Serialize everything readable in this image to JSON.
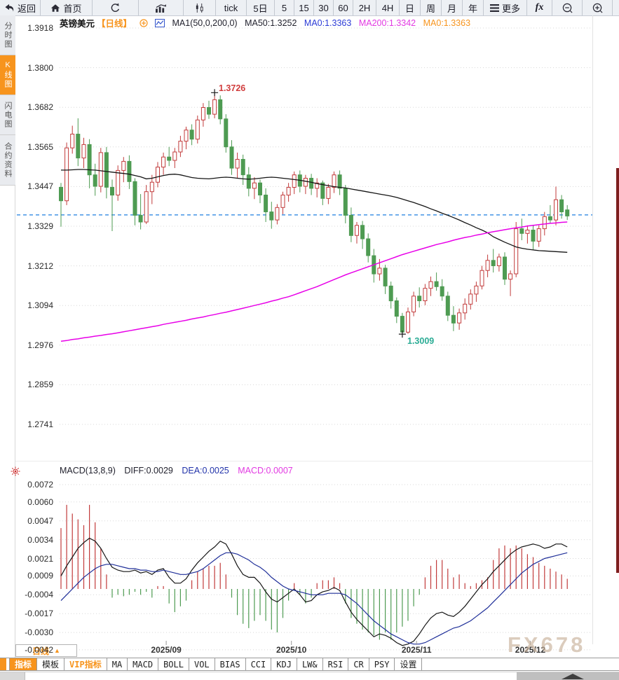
{
  "toolbar": {
    "back": "返回",
    "home": "首页",
    "tick": "tick",
    "d5": "5日",
    "m5": "5",
    "m15": "15",
    "m30": "30",
    "m60": "60",
    "h2": "2H",
    "h4": "4H",
    "day": "日",
    "week": "周",
    "month": "月",
    "year": "年",
    "more": "更多",
    "fx": "fx"
  },
  "sidebar": {
    "items": [
      {
        "label": "分时图",
        "active": false
      },
      {
        "label": "K线图",
        "active": true
      },
      {
        "label": "闪电图",
        "active": false
      },
      {
        "label": "合约资料",
        "active": false
      }
    ]
  },
  "price_panel": {
    "symbol": "英镑美元",
    "period": "【日线】",
    "ma_settings": "MA1(50,0,200,0)",
    "ma50": "MA50:1.3252",
    "ma0_blue": "MA0:1.3363",
    "ma200": "MA200:1.3342",
    "ma0_orange": "MA0:1.3363",
    "high_label": "1.3726",
    "low_label": "1.3009",
    "axis_labels": [
      "1.3918",
      "1.3800",
      "1.3682",
      "1.3565",
      "1.3447",
      "1.3329",
      "1.3212",
      "1.3094",
      "1.2976",
      "1.2859",
      "1.2741"
    ]
  },
  "macd_panel": {
    "title": "MACD(13,8,9)",
    "diff": "DIFF:0.0029",
    "dea": "DEA:0.0025",
    "macd": "MACD:0.0007",
    "axis_labels": [
      "0.0072",
      "0.0060",
      "0.0047",
      "0.0034",
      "0.0021",
      "0.0009",
      "-0.0004",
      "-0.0017",
      "-0.0030",
      "-0.0042"
    ]
  },
  "footer": {
    "period_selector": "日线",
    "watermark": "FX678",
    "tabs": [
      {
        "label": "指标",
        "active": true
      },
      {
        "label": "模板"
      },
      {
        "label": "VIP指标",
        "vip": true
      },
      {
        "label": "MA"
      },
      {
        "label": "MACD"
      },
      {
        "label": "BOLL"
      },
      {
        "label": "VOL"
      },
      {
        "label": "BIAS"
      },
      {
        "label": "CCI"
      },
      {
        "label": "KDJ"
      },
      {
        "label": "LW&"
      },
      {
        "label": "RSI"
      },
      {
        "label": "CR"
      },
      {
        "label": "PSY"
      },
      {
        "label": "设置"
      }
    ]
  },
  "colors": {
    "accent_orange": "#f7941d",
    "up_red": "#c23b3b",
    "down_green": "#4e9b52",
    "ma50_black": "#151515",
    "ma200_magenta": "#e800e8",
    "dea_blue": "#1f2f99",
    "diff_black": "#151515",
    "current_price_blue": "#1e7fe0",
    "grid_gray": "#d8d8d8",
    "high_red": "#d03c3c",
    "low_teal": "#2aab94"
  },
  "chart_data": {
    "type": "candlestick",
    "symbol": "GBP/USD 英镑美元",
    "interval": "日线 (daily)",
    "current_price": 1.3363,
    "high_marker": {
      "index": 27,
      "price": 1.3726
    },
    "low_marker": {
      "index": 60,
      "price": 1.3009
    },
    "months": [
      {
        "label": "2025/09",
        "index": 18.5
      },
      {
        "label": "2025/10",
        "index": 40.5
      },
      {
        "label": "2025/11",
        "index": 62.5
      },
      {
        "label": "2025/12",
        "index": 82.5
      }
    ],
    "price_axis_range": [
      1.2741,
      1.3918
    ],
    "macd_axis_range": [
      -0.0042,
      0.0072
    ],
    "candles": [
      [
        1.3445,
        1.3458,
        1.3328,
        1.3405
      ],
      [
        1.3405,
        1.3578,
        1.3392,
        1.3562
      ],
      [
        1.3562,
        1.3628,
        1.3545,
        1.3603
      ],
      [
        1.3603,
        1.365,
        1.3508,
        1.3532
      ],
      [
        1.3532,
        1.3592,
        1.3502,
        1.3572
      ],
      [
        1.3572,
        1.3588,
        1.3442,
        1.3482
      ],
      [
        1.3482,
        1.3515,
        1.342,
        1.3448
      ],
      [
        1.3448,
        1.3562,
        1.343,
        1.3548
      ],
      [
        1.3548,
        1.3565,
        1.3412,
        1.3445
      ],
      [
        1.3445,
        1.3468,
        1.3315,
        1.3422
      ],
      [
        1.3422,
        1.351,
        1.3405,
        1.3495
      ],
      [
        1.3495,
        1.3535,
        1.346,
        1.3522
      ],
      [
        1.3522,
        1.354,
        1.344,
        1.3462
      ],
      [
        1.3462,
        1.3472,
        1.3332,
        1.3362
      ],
      [
        1.3362,
        1.3425,
        1.332,
        1.3342
      ],
      [
        1.3342,
        1.3452,
        1.3336,
        1.3432
      ],
      [
        1.3432,
        1.3482,
        1.3395,
        1.346
      ],
      [
        1.346,
        1.352,
        1.3445,
        1.3505
      ],
      [
        1.3505,
        1.3548,
        1.3482,
        1.3535
      ],
      [
        1.3535,
        1.3565,
        1.3508,
        1.3525
      ],
      [
        1.3525,
        1.3562,
        1.3502,
        1.355
      ],
      [
        1.355,
        1.3598,
        1.3535,
        1.3582
      ],
      [
        1.3582,
        1.3625,
        1.3558,
        1.3615
      ],
      [
        1.3615,
        1.3632,
        1.357,
        1.3588
      ],
      [
        1.3588,
        1.3658,
        1.3575,
        1.3645
      ],
      [
        1.3645,
        1.3695,
        1.3625,
        1.3682
      ],
      [
        1.3682,
        1.3702,
        1.3648,
        1.3662
      ],
      [
        1.3662,
        1.3726,
        1.365,
        1.3705
      ],
      [
        1.3705,
        1.3718,
        1.3632,
        1.3648
      ],
      [
        1.3648,
        1.3662,
        1.3548,
        1.3565
      ],
      [
        1.3565,
        1.3585,
        1.3482,
        1.3502
      ],
      [
        1.3502,
        1.3548,
        1.3472,
        1.3528
      ],
      [
        1.3528,
        1.3542,
        1.3452,
        1.3482
      ],
      [
        1.3482,
        1.3505,
        1.3418,
        1.3442
      ],
      [
        1.3442,
        1.3475,
        1.341,
        1.3458
      ],
      [
        1.3458,
        1.3468,
        1.3398,
        1.3422
      ],
      [
        1.3422,
        1.3442,
        1.3342,
        1.3372
      ],
      [
        1.3372,
        1.3402,
        1.3322,
        1.3348
      ],
      [
        1.3348,
        1.3395,
        1.3335,
        1.3385
      ],
      [
        1.3385,
        1.3432,
        1.3365,
        1.3422
      ],
      [
        1.3422,
        1.3458,
        1.3402,
        1.3445
      ],
      [
        1.3445,
        1.3492,
        1.3425,
        1.3482
      ],
      [
        1.3482,
        1.3495,
        1.343,
        1.3448
      ],
      [
        1.3448,
        1.3482,
        1.3425,
        1.3472
      ],
      [
        1.3472,
        1.3485,
        1.3422,
        1.3442
      ],
      [
        1.3442,
        1.3472,
        1.3415,
        1.3458
      ],
      [
        1.3458,
        1.3465,
        1.3392,
        1.3412
      ],
      [
        1.3412,
        1.3455,
        1.3395,
        1.3445
      ],
      [
        1.3445,
        1.3492,
        1.3428,
        1.3482
      ],
      [
        1.3482,
        1.3495,
        1.3422,
        1.3442
      ],
      [
        1.3442,
        1.3452,
        1.3338,
        1.3362
      ],
      [
        1.3362,
        1.3385,
        1.3282,
        1.3302
      ],
      [
        1.3302,
        1.3342,
        1.3278,
        1.3332
      ],
      [
        1.3332,
        1.3345,
        1.3262,
        1.3292
      ],
      [
        1.3292,
        1.3308,
        1.3222,
        1.3242
      ],
      [
        1.3242,
        1.3262,
        1.3162,
        1.3188
      ],
      [
        1.3188,
        1.3232,
        1.3168,
        1.3205
      ],
      [
        1.3205,
        1.3215,
        1.3128,
        1.3152
      ],
      [
        1.3152,
        1.3165,
        1.3085,
        1.3108
      ],
      [
        1.3108,
        1.3118,
        1.3042,
        1.3062
      ],
      [
        1.3062,
        1.3072,
        1.3009,
        1.3015
      ],
      [
        1.3015,
        1.3088,
        1.301,
        1.3075
      ],
      [
        1.3075,
        1.3135,
        1.3062,
        1.3122
      ],
      [
        1.3122,
        1.3148,
        1.3088,
        1.3108
      ],
      [
        1.3108,
        1.3158,
        1.3095,
        1.3145
      ],
      [
        1.3145,
        1.318,
        1.3122,
        1.3165
      ],
      [
        1.3165,
        1.3192,
        1.3138,
        1.315
      ],
      [
        1.315,
        1.3172,
        1.3108,
        1.3122
      ],
      [
        1.3122,
        1.3135,
        1.3048,
        1.3065
      ],
      [
        1.3065,
        1.3092,
        1.3018,
        1.3042
      ],
      [
        1.3042,
        1.3085,
        1.3022,
        1.3072
      ],
      [
        1.3072,
        1.3115,
        1.3052,
        1.3098
      ],
      [
        1.3098,
        1.3142,
        1.3082,
        1.3128
      ],
      [
        1.3128,
        1.3165,
        1.3105,
        1.3152
      ],
      [
        1.3152,
        1.3212,
        1.3142,
        1.3198
      ],
      [
        1.3198,
        1.3245,
        1.3178,
        1.3228
      ],
      [
        1.3228,
        1.3262,
        1.3192,
        1.3212
      ],
      [
        1.3212,
        1.3248,
        1.3195,
        1.3238
      ],
      [
        1.3238,
        1.3252,
        1.3155,
        1.3172
      ],
      [
        1.3172,
        1.3198,
        1.3122,
        1.3188
      ],
      [
        1.3188,
        1.3342,
        1.3178,
        1.3322
      ],
      [
        1.3322,
        1.3352,
        1.3288,
        1.3308
      ],
      [
        1.3308,
        1.3332,
        1.3278,
        1.3318
      ],
      [
        1.3318,
        1.3332,
        1.3258,
        1.3285
      ],
      [
        1.3285,
        1.3332,
        1.3268,
        1.3322
      ],
      [
        1.3322,
        1.3372,
        1.3302,
        1.3358
      ],
      [
        1.3358,
        1.3392,
        1.3338,
        1.3348
      ],
      [
        1.3348,
        1.3447,
        1.3332,
        1.3408
      ],
      [
        1.3408,
        1.3422,
        1.3352,
        1.3372
      ],
      [
        1.3378,
        1.3392,
        1.3348,
        1.336
      ]
    ],
    "ma50": [
      1.3496,
      1.3496,
      1.3497,
      1.3498,
      1.3498,
      1.3497,
      1.3496,
      1.3494,
      1.3492,
      1.349,
      1.3488,
      1.3486,
      1.3484,
      1.348,
      1.3476,
      1.347,
      1.3472,
      1.3476,
      1.348,
      1.3483,
      1.3484,
      1.3482,
      1.3478,
      1.3474,
      1.3472,
      1.3471,
      1.347,
      1.3472,
      1.3474,
      1.3475,
      1.3474,
      1.3472,
      1.347,
      1.3469,
      1.347,
      1.3472,
      1.3474,
      1.3475,
      1.3474,
      1.3472,
      1.347,
      1.3468,
      1.3466,
      1.3463,
      1.346,
      1.3456,
      1.3453,
      1.345,
      1.3447,
      1.3445,
      1.3443,
      1.344,
      1.3437,
      1.3434,
      1.3431,
      1.3428,
      1.3425,
      1.3422,
      1.3419,
      1.3415,
      1.341,
      1.3405,
      1.34,
      1.3394,
      1.3388,
      1.3381,
      1.3375,
      1.3368,
      1.3362,
      1.3355,
      1.3348,
      1.334,
      1.3333,
      1.3325,
      1.3318,
      1.331,
      1.3298,
      1.329,
      1.3282,
      1.3275,
      1.3268,
      1.3264,
      1.3261,
      1.3259,
      1.3257,
      1.3256,
      1.3255,
      1.3254,
      1.3253,
      1.3252
    ],
    "ma200": [
      1.2988,
      1.299,
      1.2993,
      1.2995,
      1.2998,
      1.3,
      1.3003,
      1.3005,
      1.3008,
      1.301,
      1.3013,
      1.3016,
      1.3019,
      1.3022,
      1.3025,
      1.3028,
      1.3031,
      1.3034,
      1.3038,
      1.3041,
      1.3044,
      1.3047,
      1.305,
      1.3054,
      1.3057,
      1.306,
      1.3064,
      1.3067,
      1.3071,
      1.3074,
      1.3078,
      1.3082,
      1.3086,
      1.309,
      1.3094,
      1.3098,
      1.3102,
      1.3107,
      1.3111,
      1.3116,
      1.312,
      1.3126,
      1.3132,
      1.3138,
      1.3144,
      1.315,
      1.3157,
      1.3164,
      1.3171,
      1.3178,
      1.3185,
      1.3191,
      1.3197,
      1.3203,
      1.3209,
      1.3215,
      1.3221,
      1.3227,
      1.3233,
      1.3239,
      1.3245,
      1.325,
      1.3255,
      1.326,
      1.3265,
      1.327,
      1.3275,
      1.3279,
      1.3283,
      1.3288,
      1.3292,
      1.3296,
      1.3299,
      1.3303,
      1.3306,
      1.331,
      1.3313,
      1.3316,
      1.3319,
      1.3322,
      1.3325,
      1.3327,
      1.333,
      1.3332,
      1.3334,
      1.3336,
      1.3338,
      1.3339,
      1.3341,
      1.3342
    ],
    "macd": {
      "scale": 0.0001,
      "hist": [
        42,
        58,
        52,
        48,
        44,
        58,
        46,
        28,
        10,
        -6,
        -4,
        -5,
        -4,
        -2,
        -4,
        -2,
        -6,
        2,
        2,
        -10,
        -16,
        -12,
        -8,
        6,
        12,
        14,
        16,
        16,
        18,
        10,
        -6,
        -18,
        -24,
        -27,
        -22,
        -18,
        -22,
        -28,
        -30,
        -20,
        -8,
        4,
        -4,
        -10,
        -6,
        4,
        6,
        6,
        8,
        4,
        -10,
        -20,
        -24,
        -28,
        -30,
        -32,
        -35,
        -30,
        -35,
        -30,
        -26,
        -22,
        -12,
        -4,
        8,
        16,
        20,
        20,
        14,
        8,
        10,
        4,
        2,
        4,
        6,
        8,
        20,
        28,
        30,
        28,
        30,
        28,
        24,
        22,
        18,
        16,
        14,
        12,
        10,
        7
      ],
      "diff": [
        9,
        16,
        22,
        28,
        32,
        35,
        33,
        28,
        21,
        15,
        13,
        12,
        12,
        13,
        11,
        12,
        10,
        13,
        14,
        8,
        4,
        4,
        7,
        13,
        18,
        22,
        26,
        29,
        33,
        31,
        24,
        16,
        10,
        8,
        8,
        4,
        -2,
        -7,
        -9,
        -6,
        -3,
        0,
        -4,
        -9,
        -8,
        -4,
        -2,
        -1,
        1,
        -1,
        -9,
        -16,
        -21,
        -25,
        -29,
        -33,
        -31,
        -32,
        -34,
        -37,
        -39,
        -38,
        -36,
        -31,
        -25,
        -20,
        -17,
        -16,
        -18,
        -19,
        -16,
        -12,
        -7,
        -2,
        3,
        7,
        12,
        16,
        20,
        24,
        27,
        29,
        30,
        31,
        30,
        28,
        29,
        31,
        31,
        29
      ],
      "dea": [
        -8,
        -4,
        0,
        4,
        8,
        11,
        14,
        16,
        17,
        17,
        16,
        15,
        14,
        14,
        13,
        13,
        12,
        12,
        13,
        12,
        11,
        10,
        10,
        11,
        12,
        14,
        17,
        20,
        23,
        25,
        25,
        24,
        22,
        20,
        17,
        15,
        12,
        8,
        5,
        2,
        0,
        -1,
        -2,
        -3,
        -4,
        -4,
        -4,
        -3,
        -3,
        -3,
        -4,
        -7,
        -10,
        -14,
        -18,
        -22,
        -25,
        -28,
        -31,
        -33,
        -35,
        -37,
        -38,
        -38,
        -37,
        -35,
        -33,
        -31,
        -29,
        -27,
        -26,
        -24,
        -22,
        -19,
        -16,
        -13,
        -9,
        -5,
        -1,
        3,
        7,
        11,
        14,
        17,
        19,
        21,
        22,
        23,
        24,
        25
      ]
    }
  }
}
